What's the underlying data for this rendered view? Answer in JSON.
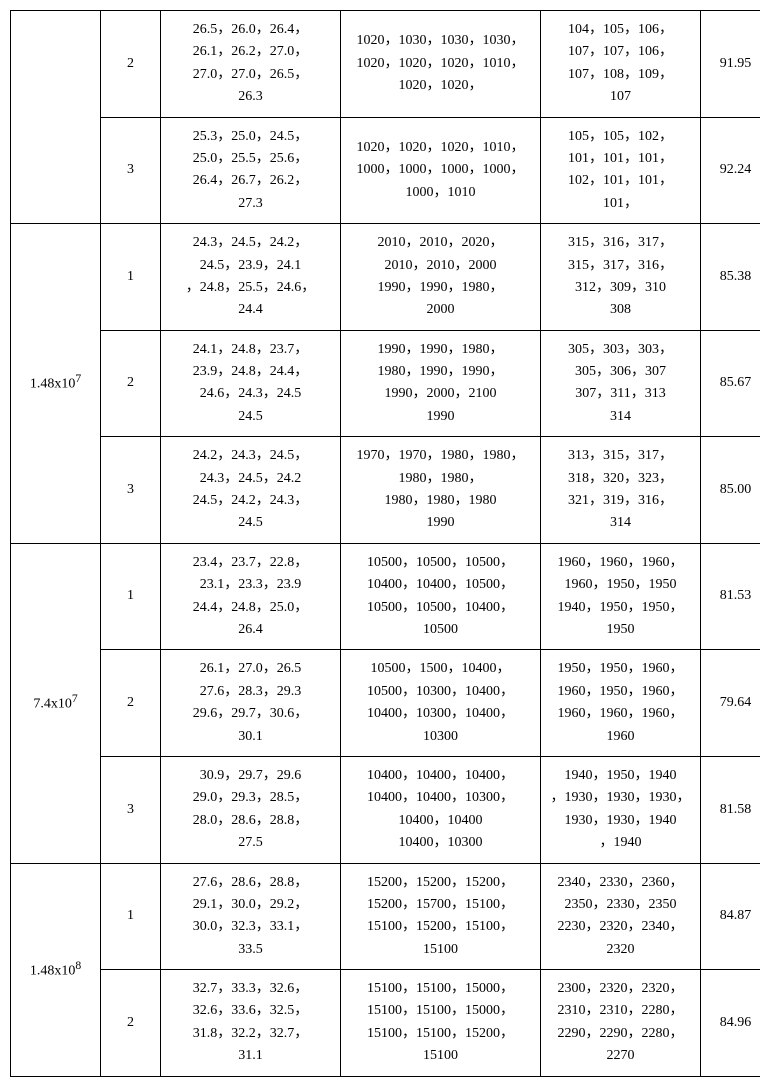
{
  "font_family": "Times New Roman, serif",
  "font_size": 14,
  "border_color": "#000000",
  "background_color": "#ffffff",
  "columns": {
    "c1": 90,
    "c2": 60,
    "c3": 180,
    "c4": 200,
    "c5": 160,
    "c6": 70
  },
  "groups": [
    {
      "label": "",
      "rows": [
        {
          "idx": "2",
          "col3": "26.5，26.0，26.4，\n26.1，26.2，27.0，\n27.0，27.0，26.5，\n26.3",
          "col4": "1020，1030，1030，1030，\n1020，1020，1020，1010，\n1020，1020，",
          "col5": "104，105，106，\n107，107，106，\n107，108，109，\n107",
          "col6": "91.95"
        },
        {
          "idx": "3",
          "col3": "25.3，25.0，24.5，\n25.0，25.5，25.6，\n26.4，26.7，26.2，\n27.3",
          "col4": "1020，1020，1020，1010，\n1000，1000，1000，1000，\n1000，1010",
          "col5": "105，105，102，\n101，101，101，\n102，101，101，\n101，",
          "col6": "92.24"
        }
      ]
    },
    {
      "label": "1.48x10⁷",
      "rows": [
        {
          "idx": "1",
          "col3": "24.3，24.5，24.2，\n24.5，23.9，24.1\n，24.8，25.5，24.6，\n24.4",
          "col4": "2010，2010，2020，\n2010，2010，2000\n1990，1990，1980，\n2000",
          "col5": "315，316，317，\n315，317，316，\n312，309，310\n308",
          "col6": "85.38"
        },
        {
          "idx": "2",
          "col3": "24.1，24.8，23.7，\n23.9，24.8，24.4，\n24.6，24.3，24.5\n24.5",
          "col4": "1990，1990，1980，\n1980，1990，1990，\n1990，2000，2100\n1990",
          "col5": "305，303，303，\n305，306，307\n307，311，313\n314",
          "col6": "85.67"
        },
        {
          "idx": "3",
          "col3": "24.2，24.3，24.5，\n24.3，24.5，24.2\n24.5，24.2，24.3，\n24.5",
          "col4": "1970，1970，1980，1980，\n1980，1980，\n1980，1980，1980\n1990",
          "col5": "313，315，317，\n318，320，323，\n321，319，316，\n314",
          "col6": "85.00"
        }
      ]
    },
    {
      "label": "7.4x10⁷",
      "rows": [
        {
          "idx": "1",
          "col3": "23.4，23.7，22.8，\n23.1，23.3，23.9\n24.4，24.8，25.0，\n26.4",
          "col4": "10500，10500，10500，\n10400，10400，10500，\n10500，10500，10400，\n10500",
          "col5": "1960，1960，1960，\n1960，1950，1950\n1940，1950，1950，\n1950",
          "col6": "81.53"
        },
        {
          "idx": "2",
          "col3": "26.1，27.0，26.5\n27.6，28.3，29.3\n29.6，29.7，30.6，\n30.1",
          "col4": "10500，1500，10400，\n10500，10300，10400，\n10400，10300，10400，\n10300",
          "col5": "1950，1950，1960，\n1960，1950，1960，\n1960，1960，1960，\n1960",
          "col6": "79.64"
        },
        {
          "idx": "3",
          "col3": "30.9，29.7，29.6\n29.0，29.3，28.5，\n28.0，28.6，28.8，\n27.5",
          "col4": "10400，10400，10400，\n10400，10400，10300，\n10400，10400\n10400，10300",
          "col5": "1940，1950，1940\n，1930，1930，1930，\n1930，1930，1940\n，1940",
          "col6": "81.58"
        }
      ]
    },
    {
      "label": "1.48x10⁸",
      "rows": [
        {
          "idx": "1",
          "col3": "27.6，28.6，28.8，\n29.1，30.0，29.2，\n30.0，32.3，33.1，\n33.5",
          "col4": "15200，15200，15200，\n15200，15700，15100，\n15100，15200，15100，\n15100",
          "col5": "2340，2330，2360，\n2350，2330，2350\n2230，2320，2340，\n2320",
          "col6": "84.87"
        },
        {
          "idx": "2",
          "col3": "32.7，33.3，32.6，\n32.6，33.6，32.5，\n31.8，32.2，32.7，\n31.1",
          "col4": "15100，15100，15000，\n15100，15100，15000，\n15100，15100，15200，\n15100",
          "col5": "2300，2320，2320，\n2310，2310，2280，\n2290，2290，2280，\n2270",
          "col6": "84.96"
        }
      ]
    }
  ]
}
